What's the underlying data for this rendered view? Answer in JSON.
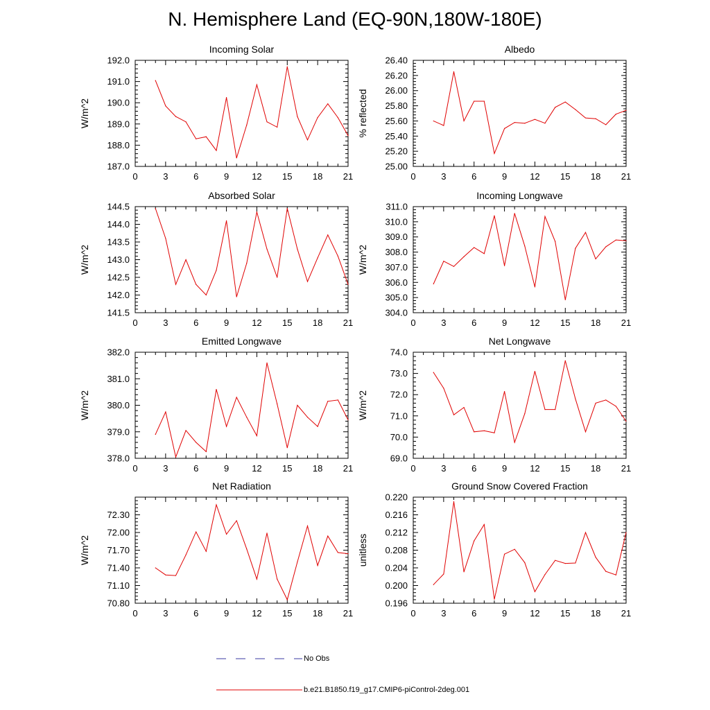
{
  "title": "N. Hemisphere Land (EQ-90N,180W-180E)",
  "colors": {
    "model_line": "#e00000",
    "obs_line": "#3a3aa0",
    "axis": "#000000"
  },
  "legend": {
    "obs_label": "No Obs",
    "model_label": "b.e21.B1850.f19_g17.CMIP6-piControl-2deg.001"
  },
  "chart_data": [
    {
      "type": "line",
      "title": "Incoming Solar",
      "xlabel": "",
      "ylabel": "W/m^2",
      "xlim": [
        0,
        21
      ],
      "xticks": [
        0,
        3,
        6,
        9,
        12,
        15,
        18,
        21
      ],
      "ylim": [
        187.0,
        192.0
      ],
      "yticks": [
        187.0,
        188.0,
        189.0,
        190.0,
        191.0,
        192.0
      ],
      "ytick_labels": [
        "187.0",
        "188.0",
        "189.0",
        "190.0",
        "191.0",
        "192.0"
      ],
      "series": [
        {
          "name": "b.e21.B1850.f19_g17.CMIP6-piControl-2deg.001",
          "x": [
            2,
            3,
            4,
            5,
            6,
            7,
            8,
            9,
            10,
            11,
            12,
            13,
            14,
            15,
            16,
            17,
            18,
            19,
            20,
            21
          ],
          "values": [
            191.05,
            189.85,
            189.35,
            189.1,
            188.3,
            188.4,
            187.75,
            190.25,
            187.4,
            188.95,
            190.85,
            189.1,
            188.85,
            191.7,
            189.35,
            188.25,
            189.3,
            189.95,
            189.3,
            188.45
          ]
        }
      ]
    },
    {
      "type": "line",
      "title": "Albedo",
      "xlabel": "",
      "ylabel": "% reflected",
      "xlim": [
        0,
        21
      ],
      "xticks": [
        0,
        3,
        6,
        9,
        12,
        15,
        18,
        21
      ],
      "ylim": [
        25.0,
        26.4
      ],
      "yticks": [
        25.0,
        25.2,
        25.4,
        25.6,
        25.8,
        26.0,
        26.2,
        26.4
      ],
      "ytick_labels": [
        "25.00",
        "25.20",
        "25.40",
        "25.60",
        "25.80",
        "26.00",
        "26.20",
        "26.40"
      ],
      "series": [
        {
          "name": "b.e21.B1850.f19_g17.CMIP6-piControl-2deg.001",
          "x": [
            2,
            3,
            4,
            5,
            6,
            7,
            8,
            9,
            10,
            11,
            12,
            13,
            14,
            15,
            16,
            17,
            18,
            19,
            20,
            21
          ],
          "values": [
            25.6,
            25.54,
            26.25,
            25.6,
            25.86,
            25.86,
            25.17,
            25.5,
            25.58,
            25.57,
            25.62,
            25.57,
            25.78,
            25.85,
            25.75,
            25.64,
            25.63,
            25.55,
            25.69,
            25.74
          ]
        }
      ]
    },
    {
      "type": "line",
      "title": "Absorbed Solar",
      "xlabel": "",
      "ylabel": "W/m^2",
      "xlim": [
        0,
        21
      ],
      "xticks": [
        0,
        3,
        6,
        9,
        12,
        15,
        18,
        21
      ],
      "ylim": [
        141.5,
        144.5
      ],
      "yticks": [
        141.5,
        142.0,
        142.5,
        143.0,
        143.5,
        144.0,
        144.5
      ],
      "ytick_labels": [
        "141.5",
        "142.0",
        "142.5",
        "143.0",
        "143.5",
        "144.0",
        "144.5"
      ],
      "series": [
        {
          "name": "b.e21.B1850.f19_g17.CMIP6-piControl-2deg.001",
          "x": [
            2,
            3,
            4,
            5,
            6,
            7,
            8,
            9,
            10,
            11,
            12,
            13,
            14,
            15,
            16,
            17,
            18,
            19,
            20,
            21
          ],
          "values": [
            144.45,
            143.6,
            142.3,
            143.0,
            142.3,
            142.0,
            142.7,
            144.1,
            141.95,
            142.9,
            144.35,
            143.3,
            142.5,
            144.45,
            143.3,
            142.38,
            143.05,
            143.7,
            143.1,
            142.3
          ]
        }
      ]
    },
    {
      "type": "line",
      "title": "Incoming Longwave",
      "xlabel": "",
      "ylabel": "W/m^2",
      "xlim": [
        0,
        21
      ],
      "xticks": [
        0,
        3,
        6,
        9,
        12,
        15,
        18,
        21
      ],
      "ylim": [
        304.0,
        311.0
      ],
      "yticks": [
        304.0,
        305.0,
        306.0,
        307.0,
        308.0,
        309.0,
        310.0,
        311.0
      ],
      "ytick_labels": [
        "304.0",
        "305.0",
        "306.0",
        "307.0",
        "308.0",
        "309.0",
        "310.0",
        "311.0"
      ],
      "series": [
        {
          "name": "b.e21.B1850.f19_g17.CMIP6-piControl-2deg.001",
          "x": [
            2,
            3,
            4,
            5,
            6,
            7,
            8,
            9,
            10,
            11,
            12,
            13,
            14,
            15,
            16,
            17,
            18,
            19,
            20,
            21
          ],
          "values": [
            305.9,
            307.4,
            307.05,
            307.7,
            308.3,
            307.9,
            310.4,
            307.1,
            310.55,
            308.4,
            305.7,
            310.35,
            308.7,
            304.85,
            308.25,
            309.3,
            307.55,
            308.35,
            308.8,
            308.75
          ]
        }
      ]
    },
    {
      "type": "line",
      "title": "Emitted Longwave",
      "xlabel": "",
      "ylabel": "W/m^2",
      "xlim": [
        0,
        21
      ],
      "xticks": [
        0,
        3,
        6,
        9,
        12,
        15,
        18,
        21
      ],
      "ylim": [
        378.0,
        382.0
      ],
      "yticks": [
        378.0,
        379.0,
        380.0,
        381.0,
        382.0
      ],
      "ytick_labels": [
        "378.0",
        "379.0",
        "380.0",
        "381.0",
        "382.0"
      ],
      "series": [
        {
          "name": "b.e21.B1850.f19_g17.CMIP6-piControl-2deg.001",
          "x": [
            2,
            3,
            4,
            5,
            6,
            7,
            8,
            9,
            10,
            11,
            12,
            13,
            14,
            15,
            16,
            17,
            18,
            19,
            20,
            21
          ],
          "values": [
            378.9,
            379.75,
            378.05,
            379.05,
            378.6,
            378.25,
            380.6,
            379.2,
            380.3,
            379.55,
            378.85,
            381.6,
            380.05,
            378.4,
            380.0,
            379.55,
            379.2,
            380.15,
            380.2,
            379.45
          ]
        }
      ]
    },
    {
      "type": "line",
      "title": "Net Longwave",
      "xlabel": "",
      "ylabel": "W/m^2",
      "xlim": [
        0,
        21
      ],
      "xticks": [
        0,
        3,
        6,
        9,
        12,
        15,
        18,
        21
      ],
      "ylim": [
        69.0,
        74.0
      ],
      "yticks": [
        69.0,
        70.0,
        71.0,
        72.0,
        73.0,
        74.0
      ],
      "ytick_labels": [
        "69.0",
        "70.0",
        "71.0",
        "72.0",
        "73.0",
        "74.0"
      ],
      "series": [
        {
          "name": "b.e21.B1850.f19_g17.CMIP6-piControl-2deg.001",
          "x": [
            2,
            3,
            4,
            5,
            6,
            7,
            8,
            9,
            10,
            11,
            12,
            13,
            14,
            15,
            16,
            17,
            18,
            19,
            20,
            21
          ],
          "values": [
            73.05,
            72.3,
            71.05,
            71.4,
            70.25,
            70.3,
            70.2,
            72.15,
            69.75,
            71.1,
            73.1,
            71.3,
            71.3,
            73.6,
            71.8,
            70.25,
            71.6,
            71.75,
            71.45,
            70.75
          ]
        }
      ]
    },
    {
      "type": "line",
      "title": "Net Radiation",
      "xlabel": "",
      "ylabel": "W/m^2",
      "xlim": [
        0,
        21
      ],
      "xticks": [
        0,
        3,
        6,
        9,
        12,
        15,
        18,
        21
      ],
      "ylim": [
        70.8,
        72.6
      ],
      "yticks": [
        70.8,
        71.1,
        71.4,
        71.7,
        72.0,
        72.3
      ],
      "ytick_labels": [
        "70.80",
        "71.10",
        "71.40",
        "71.70",
        "72.00",
        "72.30"
      ],
      "series": [
        {
          "name": "b.e21.B1850.f19_g17.CMIP6-piControl-2deg.001",
          "x": [
            2,
            3,
            4,
            5,
            6,
            7,
            8,
            9,
            10,
            11,
            12,
            13,
            14,
            15,
            16,
            17,
            18,
            19,
            20,
            21
          ],
          "values": [
            71.4,
            71.28,
            71.27,
            71.62,
            72.01,
            71.68,
            72.47,
            71.97,
            72.2,
            71.72,
            71.21,
            71.99,
            71.21,
            70.86,
            71.5,
            72.11,
            71.44,
            71.94,
            71.66,
            71.64
          ]
        }
      ]
    },
    {
      "type": "line",
      "title": "Ground Snow Covered Fraction",
      "xlabel": "",
      "ylabel": "unitless",
      "xlim": [
        0,
        21
      ],
      "xticks": [
        0,
        3,
        6,
        9,
        12,
        15,
        18,
        21
      ],
      "ylim": [
        0.196,
        0.22
      ],
      "yticks": [
        0.196,
        0.2,
        0.204,
        0.208,
        0.212,
        0.216,
        0.22
      ],
      "ytick_labels": [
        "0.196",
        "0.200",
        "0.204",
        "0.208",
        "0.212",
        "0.216",
        "0.220"
      ],
      "series": [
        {
          "name": "b.e21.B1850.f19_g17.CMIP6-piControl-2deg.001",
          "x": [
            2,
            3,
            4,
            5,
            6,
            7,
            8,
            9,
            10,
            11,
            12,
            13,
            14,
            15,
            16,
            17,
            18,
            19,
            20,
            21
          ],
          "values": [
            0.2002,
            0.2026,
            0.219,
            0.2031,
            0.2101,
            0.2138,
            0.1969,
            0.2071,
            0.2082,
            0.2052,
            0.1986,
            0.2025,
            0.2057,
            0.205,
            0.2051,
            0.212,
            0.2064,
            0.2032,
            0.2024,
            0.212
          ]
        }
      ]
    }
  ]
}
